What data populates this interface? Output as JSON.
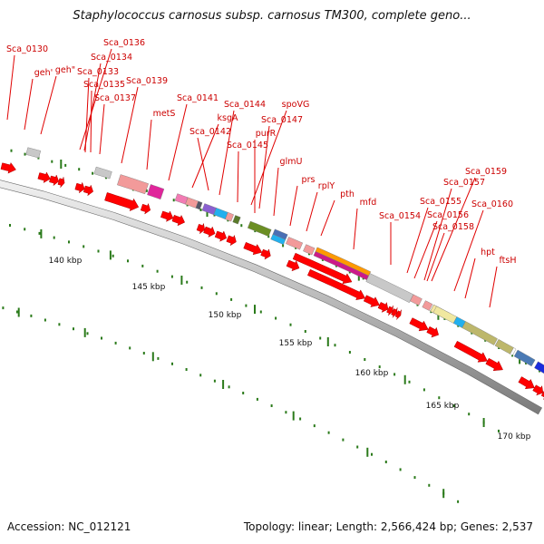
{
  "title": "Staphylococcus carnosus subsp. carnosus TM300, complete geno...",
  "footer": {
    "accession": "Accession: NC_012121",
    "summary": "Topology: linear; Length: 2,566,424 bp; Genes: 2,537"
  },
  "colors": {
    "gene_label": "#cc0000",
    "leader_line": "#e00000",
    "cds_arrow": "#ff0000",
    "axis_tick": "#2a7a1a",
    "backbone": "#999999"
  },
  "scale": {
    "unit": "kbp",
    "labels": [
      "140 kbp",
      "145 kbp",
      "150 kbp",
      "155 kbp",
      "160 kbp",
      "165 kbp",
      "170 kbp"
    ]
  },
  "genes": [
    "Sca_0130",
    "geh'",
    "geh\"",
    "Sca_0136",
    "Sca_0134",
    "Sca_0133",
    "Sca_0135",
    "Sca_0137",
    "Sca_0139",
    "metS",
    "Sca_0141",
    "ksgA",
    "Sca_0142",
    "Sca_0144",
    "spoVG",
    "Sca_0147",
    "purR",
    "Sca_0145",
    "glmU",
    "prs",
    "rplY",
    "pth",
    "mfd",
    "Sca_0154",
    "Sca_0155",
    "Sca_0156",
    "Sca_0158",
    "Sca_0157",
    "Sca_0159",
    "Sca_0160",
    "hpt",
    "ftsH"
  ]
}
